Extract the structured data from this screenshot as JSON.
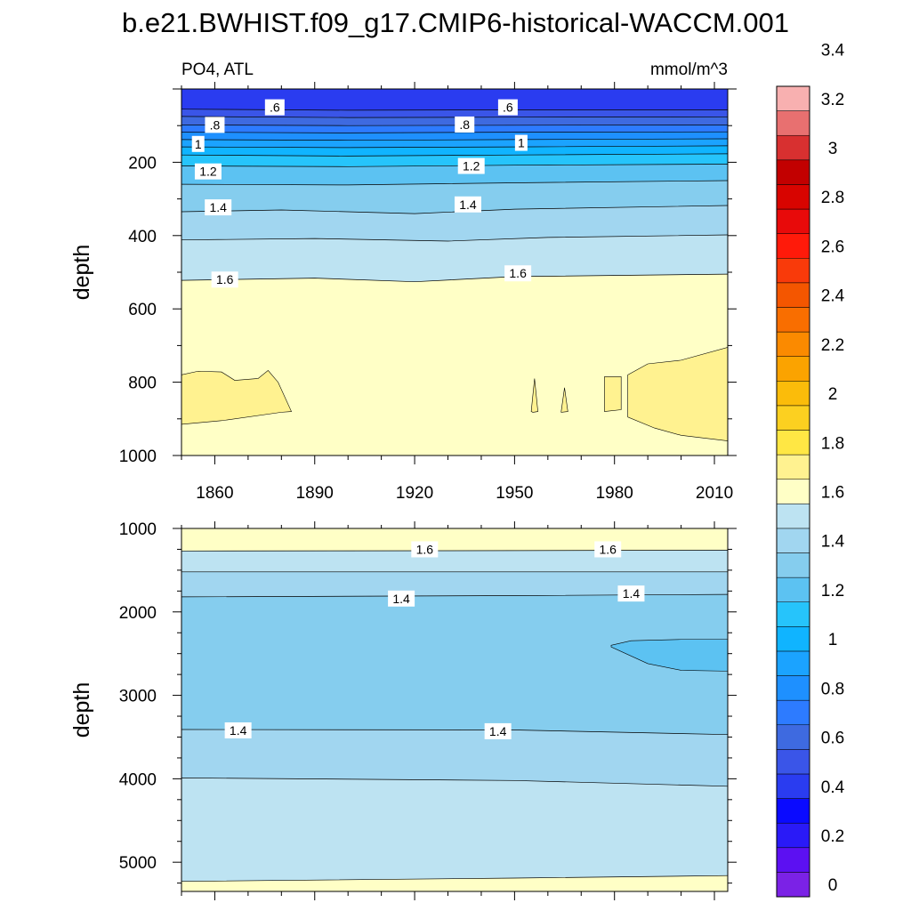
{
  "title": "b.e21.BWHIST.f09_g17.CMIP6-historical-WACCM.001",
  "chart_data": [
    {
      "type": "heatmap",
      "subtype": "filled-contour",
      "panel": "upper",
      "left_label": "PO4, ATL",
      "right_label": "mmol/m^3",
      "xlabel": "",
      "ylabel": "depth",
      "xlim": [
        1850,
        2014
      ],
      "ylim": [
        0,
        1000
      ],
      "y_reversed": true,
      "x_ticks": [
        1860,
        1890,
        1920,
        1950,
        1980,
        2010
      ],
      "y_ticks": [
        200,
        400,
        600,
        800,
        1000
      ],
      "contour_lines": [
        {
          "level": 0.5,
          "depth": [
            {
              "x": 1850,
              "y": 55
            },
            {
              "x": 1900,
              "y": 58
            },
            {
              "x": 1950,
              "y": 57
            },
            {
              "x": 2014,
              "y": 57
            }
          ]
        },
        {
          "level": 0.6,
          "depth": [
            {
              "x": 1850,
              "y": 75
            },
            {
              "x": 1900,
              "y": 78
            },
            {
              "x": 1950,
              "y": 77
            },
            {
              "x": 2014,
              "y": 76
            }
          ]
        },
        {
          "level": 0.7,
          "depth": [
            {
              "x": 1850,
              "y": 98
            },
            {
              "x": 1900,
              "y": 100
            },
            {
              "x": 1950,
              "y": 99
            },
            {
              "x": 2014,
              "y": 98
            }
          ]
        },
        {
          "level": 0.8,
          "depth": [
            {
              "x": 1850,
              "y": 118
            },
            {
              "x": 1900,
              "y": 120
            },
            {
              "x": 1950,
              "y": 118
            },
            {
              "x": 2014,
              "y": 117
            }
          ]
        },
        {
          "level": 0.9,
          "depth": [
            {
              "x": 1850,
              "y": 138
            },
            {
              "x": 1900,
              "y": 140
            },
            {
              "x": 1950,
              "y": 138
            },
            {
              "x": 2014,
              "y": 136
            }
          ]
        },
        {
          "level": 1.0,
          "depth": [
            {
              "x": 1850,
              "y": 158
            },
            {
              "x": 1900,
              "y": 160
            },
            {
              "x": 1950,
              "y": 158
            },
            {
              "x": 2014,
              "y": 155
            }
          ]
        },
        {
          "level": 1.1,
          "depth": [
            {
              "x": 1850,
              "y": 180
            },
            {
              "x": 1900,
              "y": 183
            },
            {
              "x": 1950,
              "y": 180
            },
            {
              "x": 2014,
              "y": 177
            }
          ]
        },
        {
          "level": 1.2,
          "depth": [
            {
              "x": 1850,
              "y": 210
            },
            {
              "x": 1900,
              "y": 212
            },
            {
              "x": 1950,
              "y": 208
            },
            {
              "x": 2014,
              "y": 205
            }
          ]
        },
        {
          "level": 1.3,
          "depth": [
            {
              "x": 1850,
              "y": 260
            },
            {
              "x": 1900,
              "y": 262
            },
            {
              "x": 1950,
              "y": 256
            },
            {
              "x": 2014,
              "y": 250
            }
          ]
        },
        {
          "level": 1.4,
          "depth": [
            {
              "x": 1850,
              "y": 335
            },
            {
              "x": 1880,
              "y": 330
            },
            {
              "x": 1920,
              "y": 340
            },
            {
              "x": 1950,
              "y": 328
            },
            {
              "x": 2014,
              "y": 318
            }
          ]
        },
        {
          "level": 1.5,
          "depth": [
            {
              "x": 1850,
              "y": 412
            },
            {
              "x": 1890,
              "y": 408
            },
            {
              "x": 1930,
              "y": 415
            },
            {
              "x": 1960,
              "y": 405
            },
            {
              "x": 2014,
              "y": 398
            }
          ]
        },
        {
          "level": 1.6,
          "depth": [
            {
              "x": 1850,
              "y": 522
            },
            {
              "x": 1890,
              "y": 516
            },
            {
              "x": 1920,
              "y": 526
            },
            {
              "x": 1950,
              "y": 512
            },
            {
              "x": 2014,
              "y": 505
            }
          ]
        }
      ],
      "contour_labels": [
        {
          "text": ".6",
          "x": 1878,
          "y": 50
        },
        {
          "text": ".6",
          "x": 1948,
          "y": 50
        },
        {
          "text": ".8",
          "x": 1860,
          "y": 98
        },
        {
          "text": ".8",
          "x": 1935,
          "y": 97
        },
        {
          "text": "1",
          "x": 1855,
          "y": 150
        },
        {
          "text": "1",
          "x": 1952,
          "y": 147
        },
        {
          "text": "1.2",
          "x": 1858,
          "y": 225
        },
        {
          "text": "1.2",
          "x": 1937,
          "y": 210
        },
        {
          "text": "1.4",
          "x": 1861,
          "y": 323
        },
        {
          "text": "1.4",
          "x": 1936,
          "y": 315
        },
        {
          "text": "1.6",
          "x": 1863,
          "y": 520
        },
        {
          "text": "1.6",
          "x": 1951,
          "y": 503
        }
      ],
      "regions_above_1_7": [
        {
          "x": [
            1850,
            1855,
            1862,
            1866,
            1873,
            1876,
            1879,
            1883,
            1880,
            1862,
            1850
          ],
          "y": [
            780,
            770,
            772,
            795,
            790,
            768,
            800,
            880,
            882,
            905,
            915
          ]
        },
        {
          "x": [
            1955,
            1956,
            1957,
            1955.5
          ],
          "y": [
            880,
            790,
            880,
            882
          ]
        },
        {
          "x": [
            1964,
            1965,
            1966,
            1964
          ],
          "y": [
            880,
            815,
            880,
            882
          ]
        },
        {
          "x": [
            1977,
            1982,
            1982,
            1977
          ],
          "y": [
            880,
            875,
            785,
            785
          ]
        },
        {
          "x": [
            1984,
            1990,
            2000,
            2014,
            2014,
            2000,
            1992,
            1984
          ],
          "y": [
            780,
            750,
            740,
            705,
            960,
            945,
            925,
            895
          ]
        }
      ]
    },
    {
      "type": "heatmap",
      "subtype": "filled-contour",
      "panel": "lower",
      "xlabel": "",
      "ylabel": "depth",
      "xlim": [
        1850,
        2014
      ],
      "ylim": [
        1000,
        5350
      ],
      "y_reversed": true,
      "y_ticks": [
        1000,
        2000,
        3000,
        4000,
        5000
      ],
      "contour_lines": [
        {
          "level": 1.6,
          "depth": [
            {
              "x": 1850,
              "y": 1270
            },
            {
              "x": 1950,
              "y": 1265
            },
            {
              "x": 2014,
              "y": 1260
            }
          ]
        },
        {
          "level": 1.5,
          "depth": [
            {
              "x": 1850,
              "y": 1520
            },
            {
              "x": 1950,
              "y": 1520
            },
            {
              "x": 2014,
              "y": 1520
            }
          ]
        },
        {
          "level": 1.4,
          "depth": [
            {
              "x": 1850,
              "y": 1820
            },
            {
              "x": 1950,
              "y": 1805
            },
            {
              "x": 2014,
              "y": 1790
            }
          ]
        },
        {
          "level": 1.4,
          "depth": [
            {
              "x": 1850,
              "y": 3410
            },
            {
              "x": 1950,
              "y": 3415
            },
            {
              "x": 2014,
              "y": 3470
            }
          ]
        },
        {
          "level": 1.5,
          "depth": [
            {
              "x": 1850,
              "y": 3990
            },
            {
              "x": 1950,
              "y": 4020
            },
            {
              "x": 2014,
              "y": 4090
            }
          ]
        },
        {
          "level": 1.6,
          "depth": [
            {
              "x": 1850,
              "y": 5230
            },
            {
              "x": 1950,
              "y": 5190
            },
            {
              "x": 2014,
              "y": 5160
            }
          ]
        }
      ],
      "contour_labels": [
        {
          "text": "1.6",
          "x": 1923,
          "y": 1250
        },
        {
          "text": "1.6",
          "x": 1978,
          "y": 1250
        },
        {
          "text": "1.4",
          "x": 1916,
          "y": 1840
        },
        {
          "text": "1.4",
          "x": 1985,
          "y": 1780
        },
        {
          "text": "1.4",
          "x": 1867,
          "y": 3420
        },
        {
          "text": "1.4",
          "x": 1945,
          "y": 3430
        }
      ],
      "regions_below_1_3": [
        {
          "x": [
            1979,
            1985,
            2000,
            2014,
            2014,
            2000,
            1990,
            1979
          ],
          "y": [
            2400,
            2345,
            2330,
            2330,
            2710,
            2700,
            2620,
            2420
          ]
        }
      ]
    }
  ],
  "colorbar": {
    "tick_labels": [
      "0",
      "0.2",
      "0.4",
      "0.6",
      "0.8",
      "1",
      "1.2",
      "1.4",
      "1.6",
      "1.8",
      "2",
      "2.2",
      "2.4",
      "2.6",
      "2.8",
      "3",
      "3.2",
      "3.4"
    ],
    "bin_colors": [
      "#7b22e6",
      "#5c10f2",
      "#2a1af7",
      "#0a0aff",
      "#2a3cf0",
      "#3a55e8",
      "#3e6ae0",
      "#2d7bff",
      "#1e90ff",
      "#1ba3ff",
      "#10b4ff",
      "#26c4fb",
      "#5cc2f2",
      "#85cdee",
      "#a1d6f0",
      "#bde3f2",
      "#ffffc6",
      "#fff290",
      "#ffe744",
      "#fcd020",
      "#fbbc0a",
      "#fba300",
      "#fb8a00",
      "#f96e00",
      "#f45600",
      "#f93a0a",
      "#ff1a0a",
      "#e80a0a",
      "#d80400",
      "#c20000",
      "#d83030",
      "#e87070",
      "#f8b0b0"
    ],
    "level_min": 0.05,
    "level_step": 0.1
  }
}
